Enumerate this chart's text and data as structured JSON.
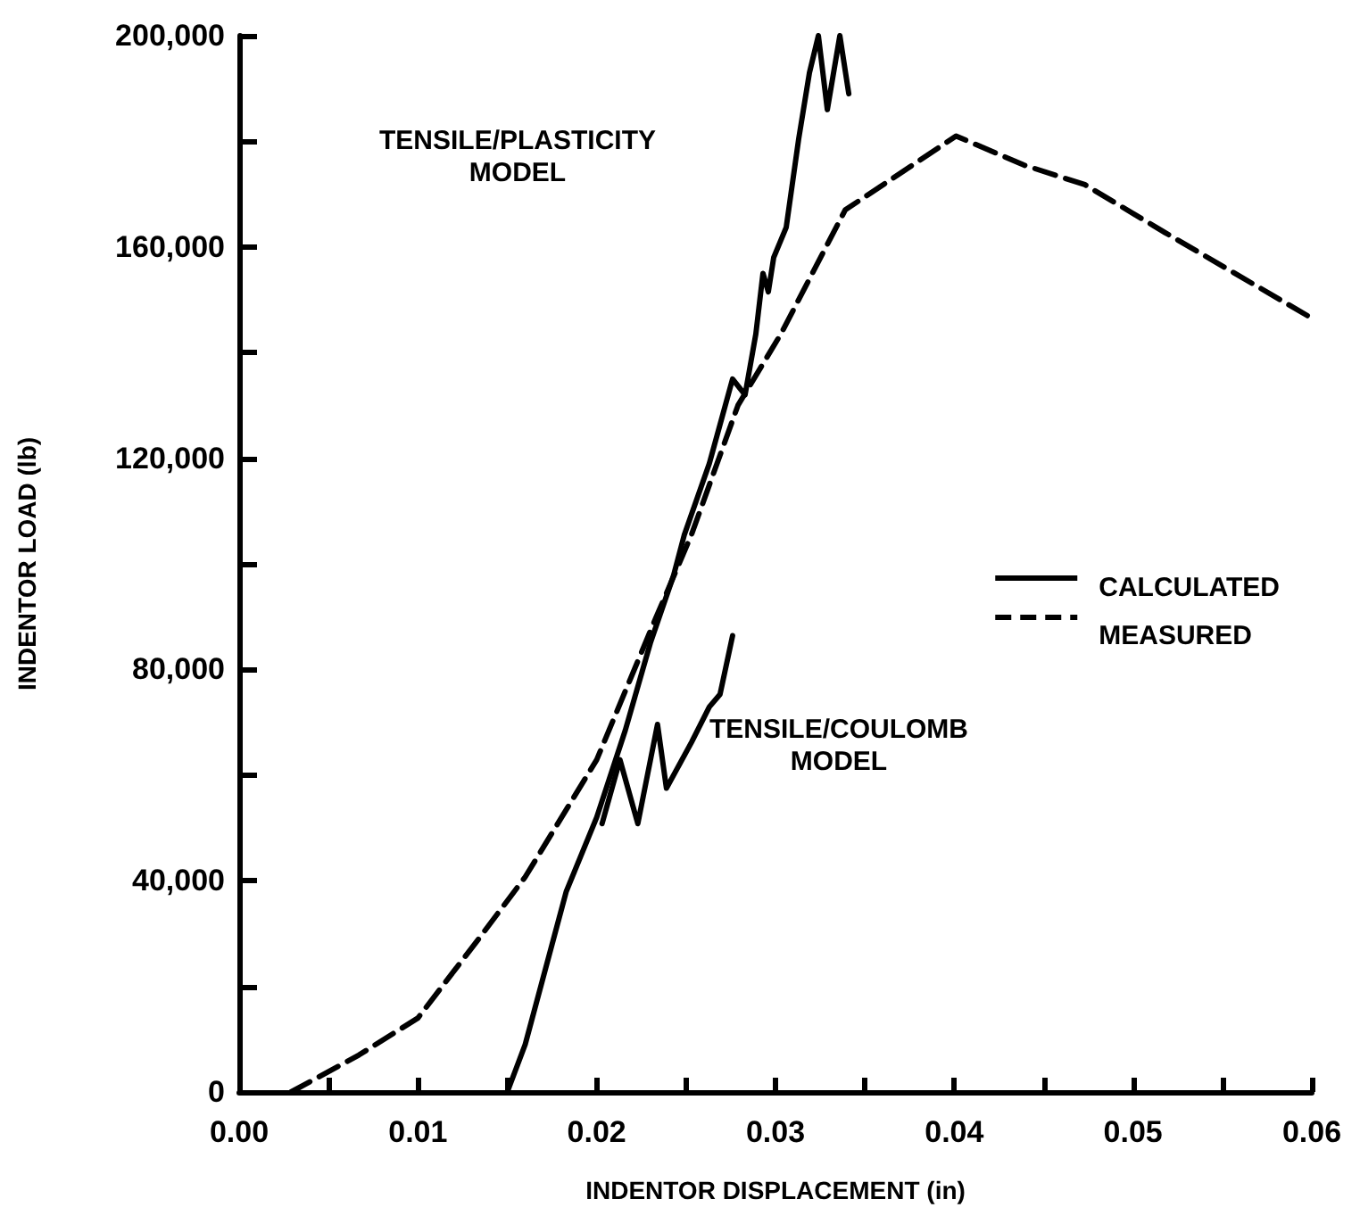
{
  "chart_data": {
    "type": "line",
    "xlabel": "INDENTOR DISPLACEMENT (in)",
    "ylabel": "INDENTOR LOAD (lb)",
    "xlim": [
      0,
      0.06
    ],
    "ylim": [
      0,
      200000
    ],
    "xticks": [
      {
        "value": 0,
        "label": "0.00"
      },
      {
        "value": 0.005,
        "label": null
      },
      {
        "value": 0.01,
        "label": "0.01"
      },
      {
        "value": 0.015,
        "label": null
      },
      {
        "value": 0.02,
        "label": "0.02"
      },
      {
        "value": 0.025,
        "label": null
      },
      {
        "value": 0.03,
        "label": "0.03"
      },
      {
        "value": 0.035,
        "label": null
      },
      {
        "value": 0.04,
        "label": "0.04"
      },
      {
        "value": 0.045,
        "label": null
      },
      {
        "value": 0.05,
        "label": "0.05"
      },
      {
        "value": 0.055,
        "label": null
      },
      {
        "value": 0.06,
        "label": "0.06"
      }
    ],
    "yticks": [
      0,
      {
        "value": 20000,
        "label": null
      },
      {
        "value": 40000,
        "label": "40,000"
      },
      {
        "value": 60000,
        "label": null
      },
      {
        "value": 80000,
        "label": "80,000"
      },
      {
        "value": 100000,
        "label": null
      },
      {
        "value": 120000,
        "label": "120,000"
      },
      {
        "value": 140000,
        "label": null
      },
      {
        "value": 160000,
        "label": "160,000"
      },
      {
        "value": 180000,
        "label": null
      },
      {
        "value": 200000,
        "label": "200,000"
      }
    ],
    "grid": false,
    "legend": "right",
    "marker": "none",
    "series": [
      {
        "name": "CALCULATED",
        "color": "#000000",
        "line_style": "solid",
        "x": [
          0.015,
          0.016,
          0.0183,
          0.02,
          0.0216,
          0.023,
          0.0243,
          0.0249,
          0.0263,
          0.0276,
          0.0283,
          0.0289,
          0.0293,
          0.0296,
          0.0299,
          0.0306,
          0.0313,
          0.0319,
          0.0324,
          0.0329,
          0.0336,
          0.0341
        ],
        "values": [
          0,
          9000,
          38000,
          52000,
          68500,
          85000,
          97800,
          105500,
          119000,
          135000,
          132000,
          143500,
          155000,
          151500,
          158000,
          163700,
          180500,
          193000,
          200000,
          186000,
          200000,
          189000
        ]
      },
      {
        "color": "#000000",
        "line_style": "solid",
        "x": [
          0.0203,
          0.0213,
          0.0223,
          0.0234,
          0.0239,
          0.0253,
          0.0263,
          0.0269,
          0.0276
        ],
        "values": [
          50800,
          62900,
          50800,
          69600,
          57500,
          66200,
          72900,
          75300,
          86400
        ]
      },
      {
        "name": "MEASURED",
        "color": "#000000",
        "line_style": "dashed",
        "x": [
          0.0029,
          0.0067,
          0.01,
          0.0134,
          0.016,
          0.02,
          0.0233,
          0.0253,
          0.0279,
          0.0303,
          0.0339,
          0.0401,
          0.0439,
          0.0473,
          0.0518,
          0.0598
        ],
        "values": [
          0,
          7000,
          14000,
          29000,
          40700,
          62900,
          89700,
          105500,
          130000,
          143500,
          167000,
          181000,
          175500,
          171800,
          162700,
          146900
        ]
      }
    ],
    "annotations": [
      "TENSILE/PLASTICITY\nMODEL",
      "TENSILE/COULOMB\nMODEL"
    ]
  }
}
